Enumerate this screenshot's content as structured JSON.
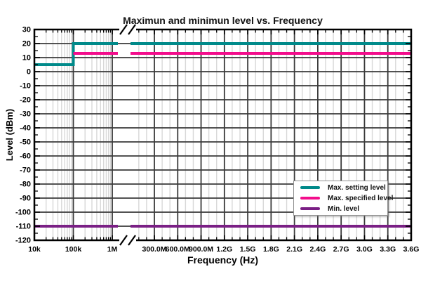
{
  "title": "Maximun and minimun level vs. Frequency",
  "x_axis_title": "Frequency (Hz)",
  "y_axis_title": "Level (dBm)",
  "colors": {
    "background": "#FFFFFF",
    "frame": "#000000",
    "grid_major": "#3A3A3A",
    "grid_minor": "#D8D8D8",
    "title_text": "#111111",
    "teal_series": "#008A8A",
    "pink_series": "#F30D8C",
    "purple_series": "#7A1F85"
  },
  "legend": {
    "entries": [
      {
        "label": "Max. setting level",
        "color": "#008A8A"
      },
      {
        "label": "Max. specified level",
        "color": "#F30D8C"
      },
      {
        "label": "Min. level",
        "color": "#7A1F85"
      }
    ]
  },
  "chart_data": {
    "type": "line",
    "title": "Maximun and minimun level vs. Frequency",
    "xlabel": "Frequency (Hz)",
    "ylabel": "Level (dBm)",
    "x_scale": "broken axis: logarithmic 10 kHz to ~1 MHz, axis break, then linear 300 MHz to 3.6 GHz",
    "ylim": [
      -120,
      30
    ],
    "y_major_step_dB": 10,
    "y_minor_tick_step_dB": 5,
    "x_minor_step_linear_Hz": 100000000,
    "grid": {
      "major": "dark gray solid",
      "minor": "light gray solid",
      "legend_position": "inside lower-right"
    },
    "x_ticks": [
      {
        "f": 10000,
        "label": "10k"
      },
      {
        "f": 100000,
        "label": "100k"
      },
      {
        "f": 1000000,
        "label": "1M"
      },
      {
        "f": 300000000,
        "label": "300.0M"
      },
      {
        "f": 600000000,
        "label": "600.0M"
      },
      {
        "f": 900000000,
        "label": "900.0M"
      },
      {
        "f": 1200000000,
        "label": "1.2G"
      },
      {
        "f": 1500000000,
        "label": "1.5G"
      },
      {
        "f": 1800000000,
        "label": "1.8G"
      },
      {
        "f": 2100000000,
        "label": "2.1G"
      },
      {
        "f": 2400000000,
        "label": "2.4G"
      },
      {
        "f": 2700000000,
        "label": "2.7G"
      },
      {
        "f": 3000000000,
        "label": "3.0G"
      },
      {
        "f": 3300000000,
        "label": "3.3G"
      },
      {
        "f": 3600000000,
        "label": "3.6G"
      }
    ],
    "y_ticks": [
      "30",
      "20",
      "10",
      "0",
      "-10",
      "-20",
      "-30",
      "-40",
      "-50",
      "-60",
      "-70",
      "-80",
      "-90",
      "-100",
      "-110",
      "-120"
    ],
    "series": [
      {
        "name": "Max. setting level",
        "color": "#008A8A",
        "points": [
          {
            "f": 10000,
            "dbm": 5
          },
          {
            "f": 100000,
            "dbm": 5
          },
          {
            "f": 100000,
            "dbm": 20
          },
          {
            "f": 3600000000,
            "dbm": 20
          }
        ]
      },
      {
        "name": "Max. specified level",
        "color": "#F30D8C",
        "points": [
          {
            "f": 100000,
            "dbm": 13
          },
          {
            "f": 3600000000,
            "dbm": 13
          }
        ]
      },
      {
        "name": "Min. level",
        "color": "#7A1F85",
        "points": [
          {
            "f": 10000,
            "dbm": -110
          },
          {
            "f": 3600000000,
            "dbm": -110
          }
        ]
      }
    ]
  }
}
